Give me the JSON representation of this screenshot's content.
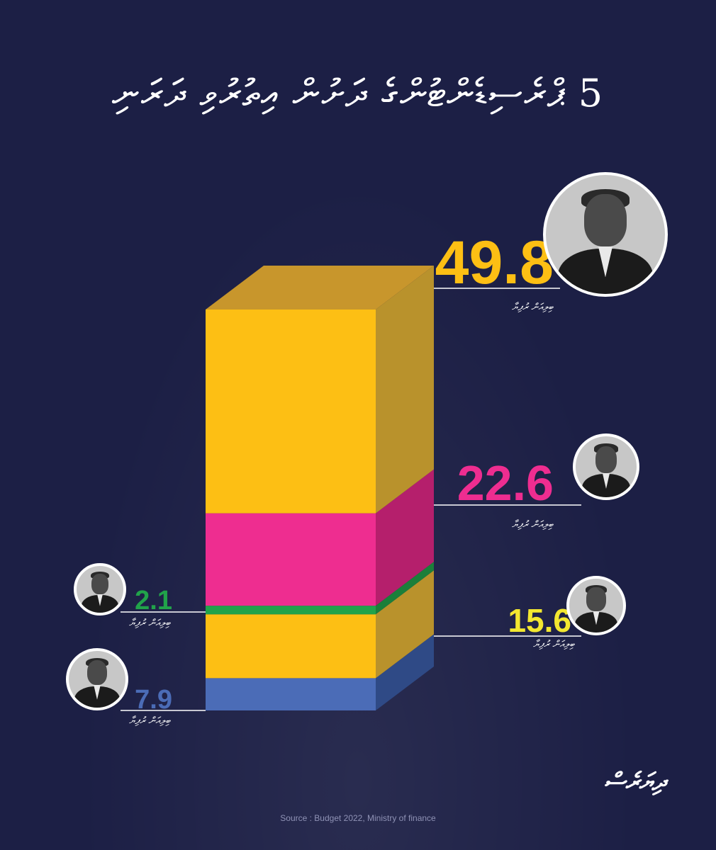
{
  "title": "5 ޕްރެސިޑެންޓުންގެ ދަށުން އިތުރުވި ދަރަނި",
  "chart_data": {
    "type": "bar",
    "stacked": true,
    "unit_caption": "ބިލިއަން ރުފިޔާ",
    "segments": [
      {
        "value": 7.9,
        "color": "#4b6cb7",
        "side_color": "#2f4a86",
        "label_color": "#4b6cb7",
        "label_side": "left"
      },
      {
        "value": 15.6,
        "color": "#fdbf14",
        "side_color": "#b9922c",
        "label_color": "#f3e730",
        "label_side": "right"
      },
      {
        "value": 2.1,
        "color": "#21a34a",
        "side_color": "#1b7f3a",
        "label_color": "#21a34a",
        "label_side": "left"
      },
      {
        "value": 22.6,
        "color": "#ee2d90",
        "side_color": "#b51f6c",
        "label_color": "#ee2d90",
        "label_side": "right"
      },
      {
        "value": 49.8,
        "color": "#fdbf14",
        "side_color": "#b9922c",
        "label_color": "#fdbf14",
        "label_side": "right"
      }
    ]
  },
  "labels": {
    "v1": "49.8",
    "v2": "22.6",
    "v3": "15.6",
    "v4": "2.1",
    "v5": "7.9",
    "cap1": "ބިލިއަން ރުފިޔާ",
    "cap2": "ބިލިއަން ރުފިޔާ",
    "cap3": "ބިލިއަން ރުފިޔާ",
    "cap4": "ބިލިއަން ރުފިޔާ",
    "cap5": "ބިލިއަން ރުފިޔާ"
  },
  "logo": "ދިޔަރެސް",
  "source": "Source : Budget 2022, Ministry of finance"
}
